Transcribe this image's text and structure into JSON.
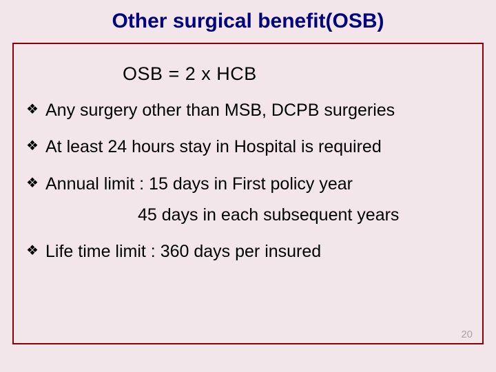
{
  "background_color": "#f2e6eb",
  "border_color": "#8b0000",
  "title": {
    "text": "Other surgical benefit(OSB)",
    "color": "#000080",
    "font_size_pt": 30,
    "font_weight": "bold"
  },
  "formula": {
    "text": "OSB = 2 x HCB",
    "font_size_pt": 27
  },
  "bullets": [
    {
      "text": "Any surgery other than MSB, DCPB surgeries"
    },
    {
      "text": "At least 24 hours stay in Hospital is required"
    },
    {
      "text": "Annual limit : 15 days in First policy year"
    },
    {
      "text": "Life time limit : 360 days per insured"
    }
  ],
  "sub_line": {
    "after_bullet_index": 2,
    "text": "45 days in each subsequent years"
  },
  "bullet_font_size_pt": 25,
  "bullet_marker": "❖",
  "page_number": "20",
  "page_number_color": "#b0a0a8"
}
